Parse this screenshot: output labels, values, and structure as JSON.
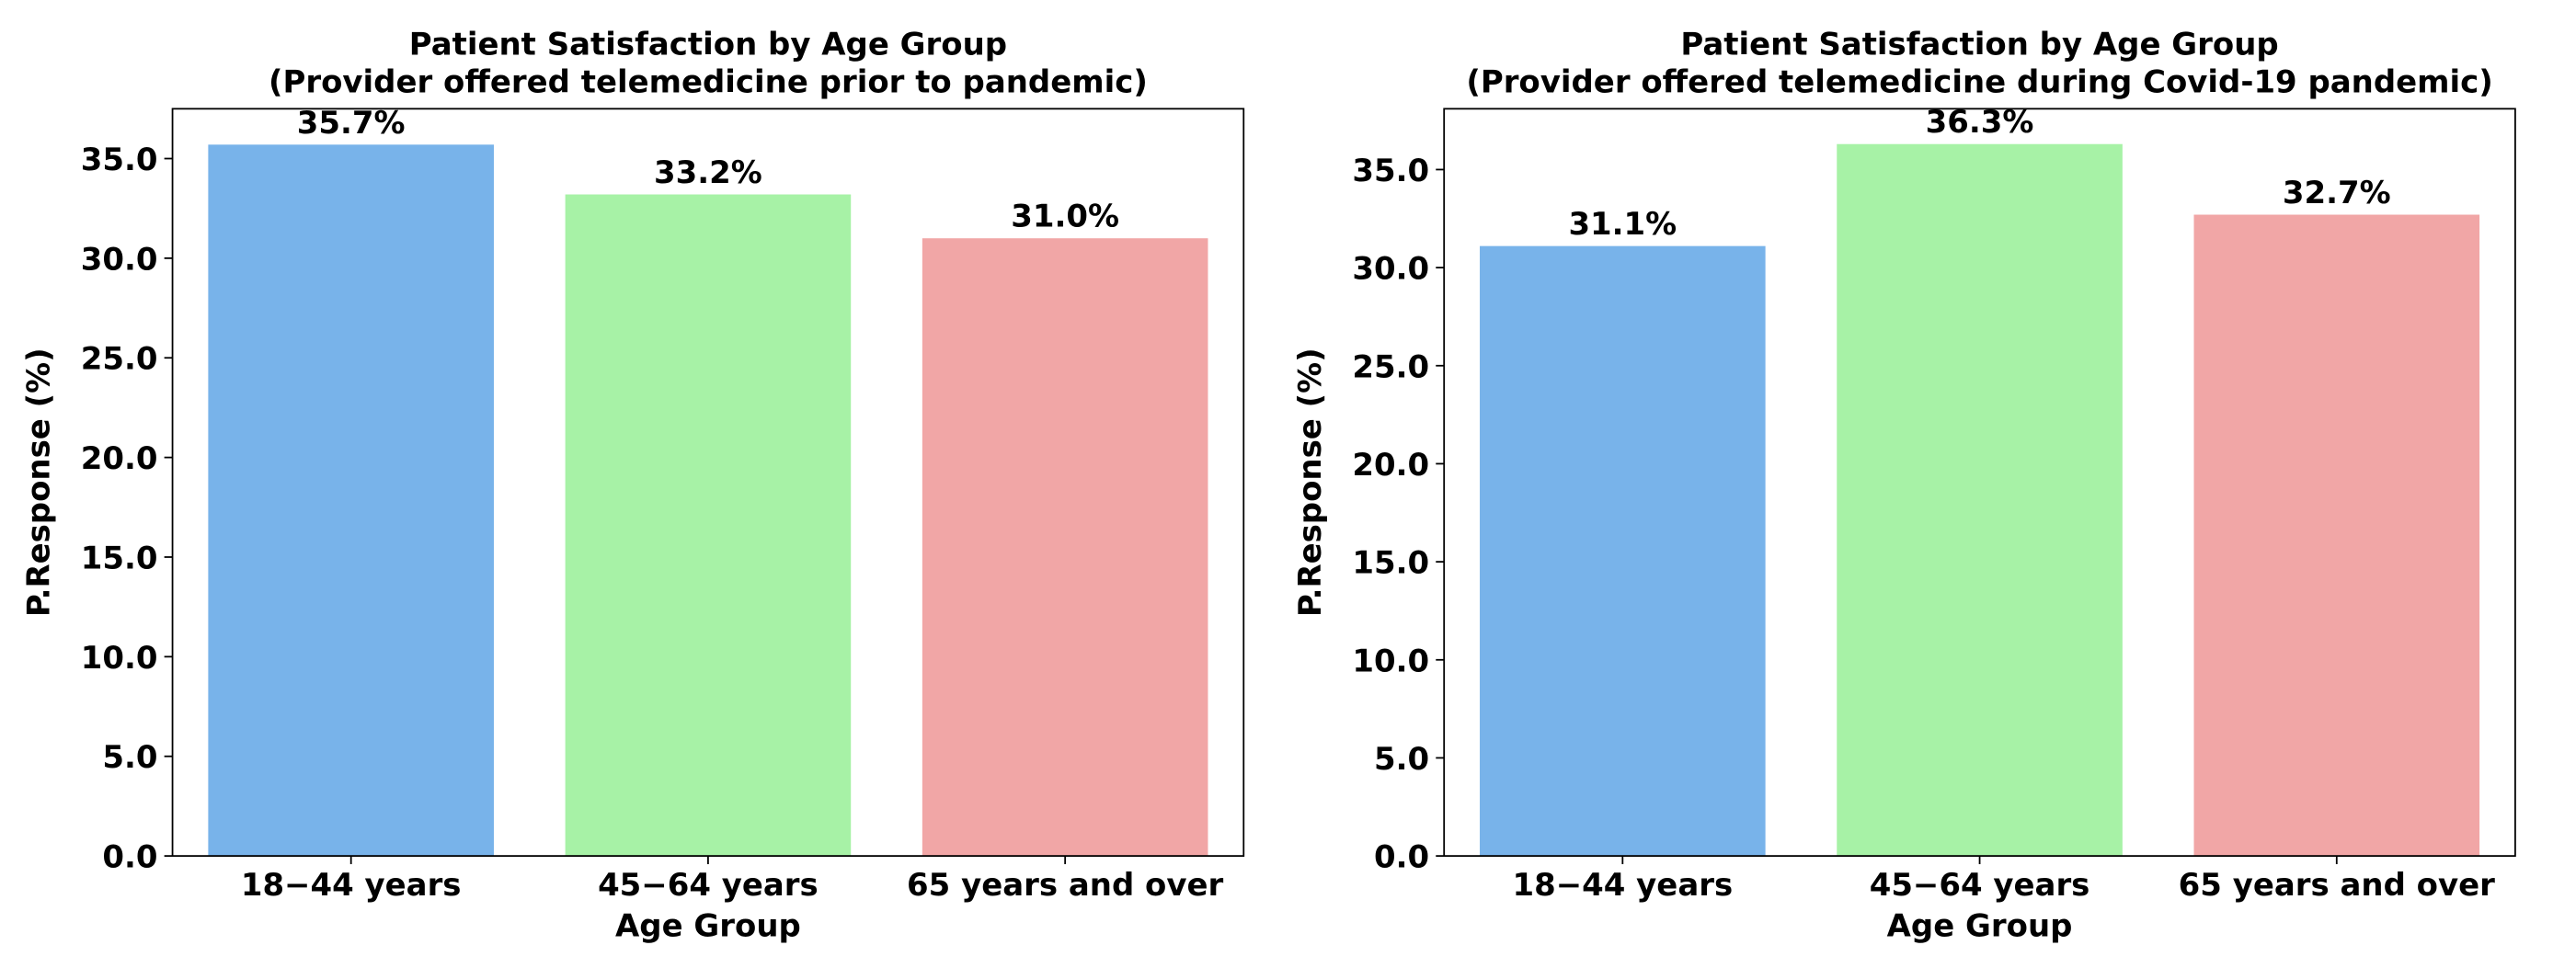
{
  "chart_data": [
    {
      "type": "bar",
      "title": "Patient Satisfaction by Age Group",
      "subtitle": "(Provider offered telemedicine prior to pandemic)",
      "x_label": "Age Group",
      "y_label": "P.Response (%)",
      "categories": [
        "18−44 years",
        "45−64 years",
        "65 years and over"
      ],
      "values": [
        35.7,
        33.2,
        31.0
      ],
      "value_labels": [
        "35.7%",
        "33.2%",
        "31.0%"
      ],
      "colors": [
        "#78b3ea",
        "#a7f2a6",
        "#f1a6a6"
      ],
      "ylim": [
        0,
        37.5
      ],
      "yticks": [
        {
          "value": 0,
          "label": "0.0"
        },
        {
          "value": 5,
          "label": "5.0"
        },
        {
          "value": 10,
          "label": "10.0"
        },
        {
          "value": 15,
          "label": "15.0"
        },
        {
          "value": 20,
          "label": "20.0"
        },
        {
          "value": 25,
          "label": "25.0"
        },
        {
          "value": 30,
          "label": "30.0"
        },
        {
          "value": 35,
          "label": "35.0"
        }
      ]
    },
    {
      "type": "bar",
      "title": "Patient Satisfaction by Age Group",
      "subtitle": "(Provider offered telemedicine during Covid-19 pandemic)",
      "x_label": "Age Group",
      "y_label": "P.Response (%)",
      "categories": [
        "18−44 years",
        "45−64 years",
        "65 years and over"
      ],
      "values": [
        31.1,
        36.3,
        32.7
      ],
      "value_labels": [
        "31.1%",
        "36.3%",
        "32.7%"
      ],
      "colors": [
        "#78b3ea",
        "#a7f2a6",
        "#f1a6a6"
      ],
      "ylim": [
        0,
        38.1
      ],
      "yticks": [
        {
          "value": 0,
          "label": "0.0"
        },
        {
          "value": 5,
          "label": "5.0"
        },
        {
          "value": 10,
          "label": "10.0"
        },
        {
          "value": 15,
          "label": "15.0"
        },
        {
          "value": 20,
          "label": "20.0"
        },
        {
          "value": 25,
          "label": "25.0"
        },
        {
          "value": 30,
          "label": "30.0"
        },
        {
          "value": 35,
          "label": "35.0"
        }
      ]
    }
  ]
}
